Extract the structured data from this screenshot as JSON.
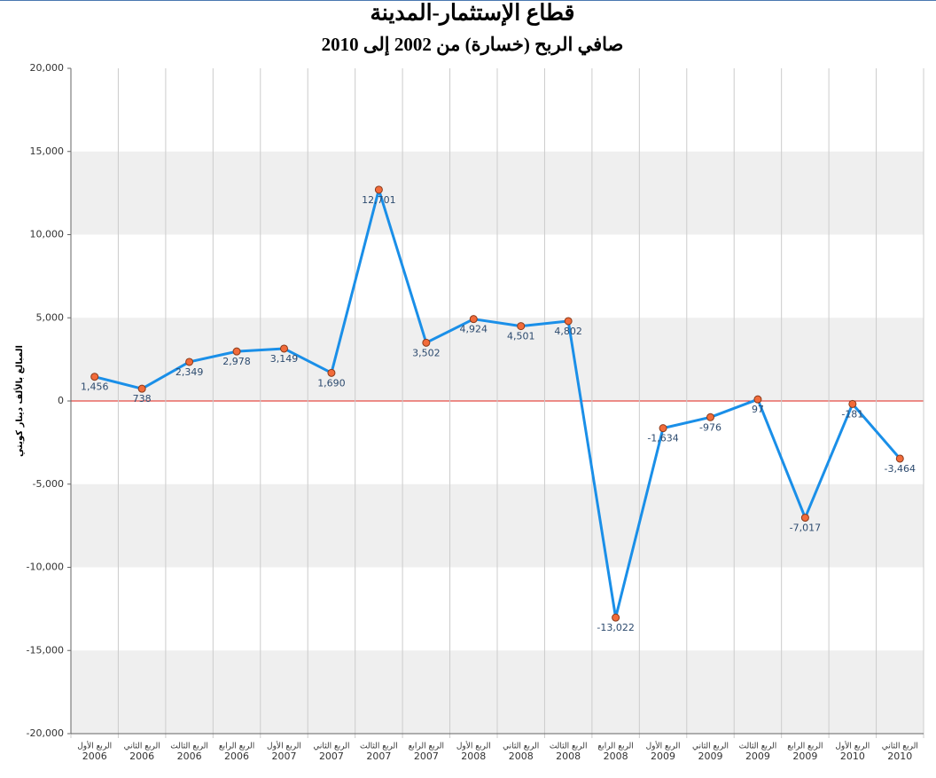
{
  "chart_data": {
    "type": "line",
    "title": "قطاع الإستثمار-المدينة",
    "subtitle": "صافي الربح (خسارة) من 2002 إلى 2010",
    "y_label": "المبالغ بالألف دينار كويتي",
    "categories": [
      [
        "الربع الأول",
        "2006"
      ],
      [
        "الربع الثاني",
        "2006"
      ],
      [
        "الربع الثالث",
        "2006"
      ],
      [
        "الربع الرابع",
        "2006"
      ],
      [
        "الربع الأول",
        "2007"
      ],
      [
        "الربع الثاني",
        "2007"
      ],
      [
        "الربع الثالث",
        "2007"
      ],
      [
        "الربع الرابع",
        "2007"
      ],
      [
        "الربع الأول",
        "2008"
      ],
      [
        "الربع الثاني",
        "2008"
      ],
      [
        "الربع الثالث",
        "2008"
      ],
      [
        "الربع الرابع",
        "2008"
      ],
      [
        "الربع الأول",
        "2009"
      ],
      [
        "الربع الثاني",
        "2009"
      ],
      [
        "الربع الثالث",
        "2009"
      ],
      [
        "الربع الرابع",
        "2009"
      ],
      [
        "الربع الأول",
        "2010"
      ],
      [
        "الربع الثاني",
        "2010"
      ]
    ],
    "series": [
      {
        "color": "#1a8fe8",
        "marker_color": "#f26b3a",
        "values": [
          1456,
          738,
          2349,
          2978,
          3149,
          1690,
          12701,
          3502,
          4924,
          4501,
          4802,
          -13022,
          -1634,
          -976,
          97,
          -7017,
          -181,
          -3464
        ],
        "value_labels": [
          "1,456",
          "738",
          "2,349",
          "2,978",
          "3,149",
          "1,690",
          "12,701",
          "3,502",
          "4,924",
          "4,501",
          "4,802",
          "-13,022",
          "-1,634",
          "-976",
          "97",
          "-7,017",
          "-181",
          "-3,464"
        ]
      }
    ],
    "ylim": [
      -20000,
      20000
    ],
    "yticks": [
      {
        "value": -20000,
        "label": "-20,000"
      },
      {
        "value": -15000,
        "label": "-15,000"
      },
      {
        "value": -10000,
        "label": "-10,000"
      },
      {
        "value": -5000,
        "label": "-5,000"
      },
      0,
      {
        "value": 5000,
        "label": "5,000"
      },
      {
        "value": 10000,
        "label": "10,000"
      },
      {
        "value": 15000,
        "label": "15,000"
      },
      {
        "value": 20000,
        "label": "20,000"
      }
    ],
    "band_color": "#efefef",
    "zero_line_color": "#e0201a",
    "grid": true
  }
}
